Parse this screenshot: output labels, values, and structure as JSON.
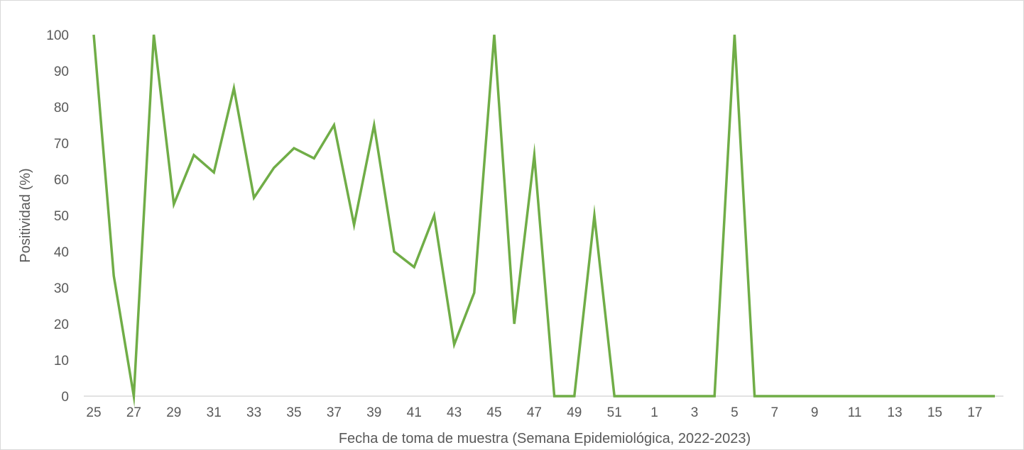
{
  "chart_data": {
    "type": "line",
    "title": "",
    "xlabel": "Fecha de toma de muestra (Semana Epidemiológica, 2022-2023)",
    "ylabel": "Positividad (%)",
    "ylim": [
      0,
      100
    ],
    "yticks": [
      0,
      10,
      20,
      30,
      40,
      50,
      60,
      70,
      80,
      90,
      100
    ],
    "grid": false,
    "legend": "none",
    "categories": [
      "25",
      "26",
      "27",
      "28",
      "29",
      "30",
      "31",
      "32",
      "33",
      "34",
      "35",
      "36",
      "37",
      "38",
      "39",
      "40",
      "41",
      "42",
      "43",
      "44",
      "45",
      "46",
      "47",
      "48",
      "49",
      "50",
      "51",
      "52",
      "1",
      "2",
      "3",
      "4",
      "5",
      "6",
      "7",
      "8",
      "9",
      "10",
      "11",
      "12",
      "13",
      "14",
      "15",
      "16",
      "17",
      "18"
    ],
    "visible_x_tick_labels": [
      "25",
      "27",
      "29",
      "31",
      "33",
      "35",
      "37",
      "39",
      "41",
      "43",
      "45",
      "47",
      "49",
      "51",
      "1",
      "3",
      "5",
      "7",
      "9",
      "11",
      "13",
      "15",
      "17"
    ],
    "series": [
      {
        "color": "#70ad47",
        "values": [
          100,
          33.3,
          0,
          100,
          53.1,
          66.7,
          61.9,
          85.2,
          54.9,
          63.2,
          68.6,
          65.8,
          75,
          47.4,
          75,
          40,
          35.7,
          50,
          14.3,
          28.6,
          100,
          20,
          66.7,
          0,
          0,
          50,
          0,
          0,
          0,
          0,
          0,
          0,
          100,
          0,
          0,
          0,
          0,
          0,
          0,
          0,
          0,
          0,
          0,
          0,
          0,
          0
        ]
      }
    ],
    "axis_color": "#d9d9d9",
    "text_color": "#595959"
  }
}
